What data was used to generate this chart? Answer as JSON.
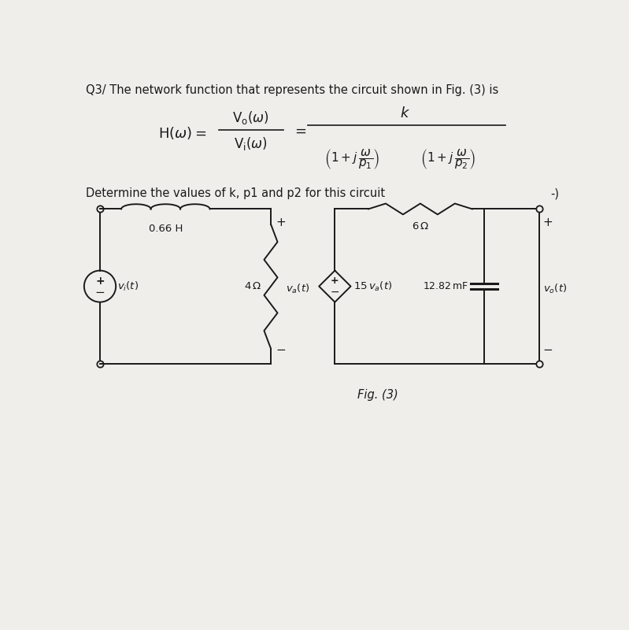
{
  "bg_color": "#f0eeeb",
  "title_text": "Q3/ The network function that represents the circuit shown in Fig. (3) is",
  "determine_text": "Determine the values of k, p1 and p2 for this circuit",
  "fig_label": "Fig. (3)",
  "inductor_label": "0.66 H",
  "resistor1_label": "4 Ω",
  "resistor2_label": "6 Ω",
  "source2_label": "15 v_a(t)",
  "cap_label": "12.82 mF",
  "vo_label": "v_o(t)",
  "vi_label": "v_i(t)",
  "va_label": "v_a(t)",
  "font_color": "#1a1a1a",
  "lw": 1.4
}
